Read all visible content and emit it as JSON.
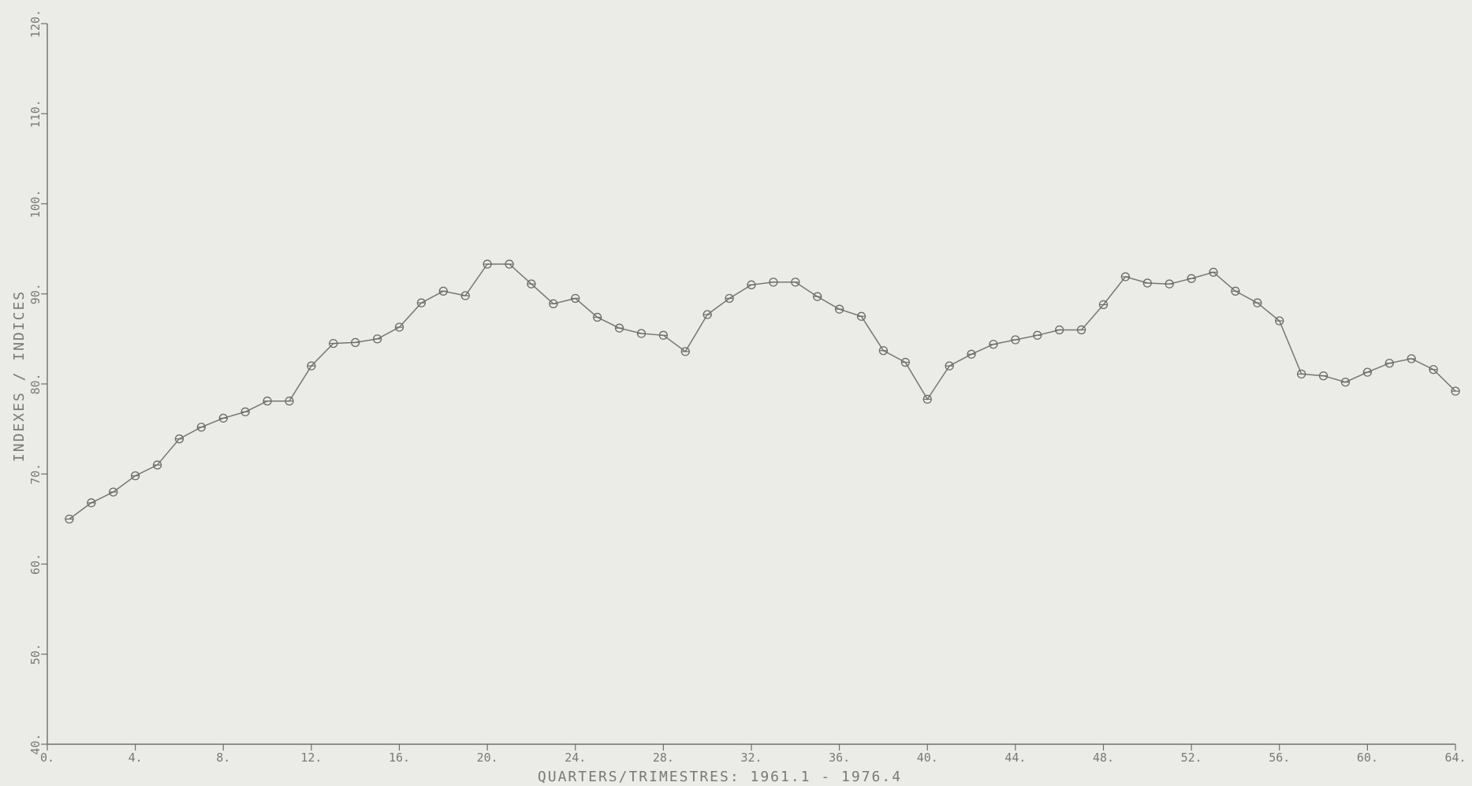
{
  "chart_data": {
    "type": "line",
    "title": "",
    "xlabel": "QUARTERS/TRIMESTRES: 1961.1 - 1976.4",
    "ylabel": "INDEXES / INDICES",
    "xlim": [
      0,
      64
    ],
    "ylim": [
      40,
      120
    ],
    "x_ticks": [
      0,
      4,
      8,
      12,
      16,
      20,
      24,
      28,
      32,
      36,
      40,
      44,
      48,
      52,
      56,
      60,
      64
    ],
    "x_tick_labels": [
      "0.",
      "4.",
      "8.",
      "12.",
      "16.",
      "20.",
      "24.",
      "28.",
      "32.",
      "36.",
      "40.",
      "44.",
      "48.",
      "52.",
      "56.",
      "60.",
      "64."
    ],
    "y_ticks": [
      40,
      50,
      60,
      70,
      80,
      90,
      100,
      110,
      120
    ],
    "y_tick_labels": [
      "40.",
      "50.",
      "60.",
      "70.",
      "80.",
      "90.",
      "100.",
      "110.",
      "120."
    ],
    "grid": false,
    "series": [
      {
        "marker": "circle",
        "x": [
          1,
          2,
          3,
          4,
          5,
          6,
          7,
          8,
          9,
          10,
          11,
          12,
          13,
          14,
          15,
          16,
          17,
          18,
          19,
          20,
          21,
          22,
          23,
          24,
          25,
          26,
          27,
          28,
          29,
          30,
          31,
          32,
          33,
          34,
          35,
          36,
          37,
          38,
          39,
          40,
          41,
          42,
          43,
          44,
          45,
          46,
          47,
          48,
          49,
          50,
          51,
          52,
          53,
          54,
          55,
          56,
          57,
          58,
          59,
          60,
          61,
          62,
          63,
          64
        ],
        "values": [
          65.0,
          66.8,
          68.0,
          69.8,
          71.0,
          73.9,
          75.2,
          76.2,
          76.9,
          78.1,
          78.1,
          82.0,
          84.5,
          84.6,
          85.0,
          86.3,
          89.0,
          90.3,
          89.8,
          93.3,
          93.3,
          91.1,
          88.9,
          89.5,
          87.4,
          86.2,
          85.6,
          85.4,
          83.6,
          87.7,
          89.5,
          91.0,
          91.3,
          91.3,
          89.7,
          88.3,
          87.5,
          83.7,
          82.4,
          78.3,
          82.0,
          83.3,
          84.4,
          84.9,
          85.4,
          86.0,
          86.0,
          88.8,
          91.9,
          91.2,
          91.1,
          91.7,
          92.4,
          90.3,
          89.0,
          87.0,
          81.1,
          80.9,
          80.2,
          81.3,
          82.3,
          82.8,
          81.6,
          79.2
        ]
      }
    ]
  }
}
